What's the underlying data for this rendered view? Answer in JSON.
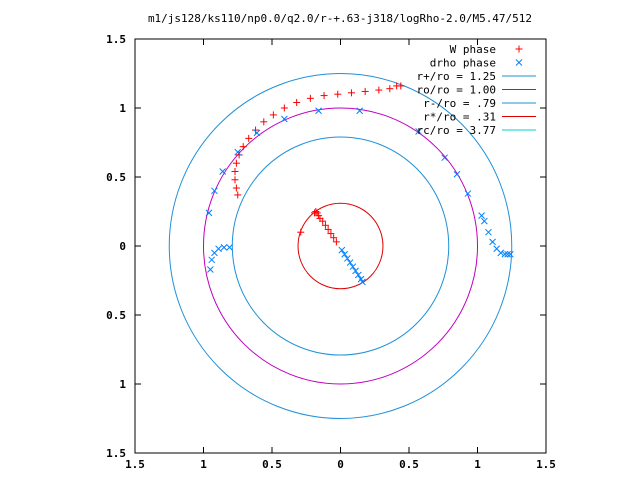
{
  "chart_data": {
    "type": "scatter",
    "title": "m1/js128/ks110/np0.0/q2.0/r-+.63-j318/logRho-2.0/M5.47/512",
    "xlim": [
      -1.5,
      1.5
    ],
    "ylim": [
      -1.5,
      1.5
    ],
    "x_ticks": [
      {
        "value": -1.5,
        "label": "1.5"
      },
      {
        "value": -1.0,
        "label": "1"
      },
      {
        "value": -0.5,
        "label": "0.5"
      },
      {
        "value": 0.0,
        "label": "0"
      },
      {
        "value": 0.5,
        "label": "0.5"
      },
      {
        "value": 1.0,
        "label": "1"
      },
      {
        "value": 1.5,
        "label": "1.5"
      }
    ],
    "y_ticks": [
      {
        "value": 1.5,
        "label": "1.5"
      },
      {
        "value": 1.0,
        "label": "1"
      },
      {
        "value": 0.5,
        "label": "0.5"
      },
      {
        "value": 0.0,
        "label": "0"
      },
      {
        "value": -0.5,
        "label": "0.5"
      },
      {
        "value": -1.0,
        "label": "1"
      },
      {
        "value": -1.5,
        "label": "1.5"
      }
    ],
    "grid": false,
    "legend_position": "top-right",
    "legend": [
      {
        "label": "W phase",
        "kind": "plus",
        "color": "#ff0000"
      },
      {
        "label": "drho phase",
        "kind": "cross",
        "color": "#0080ff"
      },
      {
        "label": "r+/ro = 1.25",
        "kind": "line",
        "color": "#2090d8"
      },
      {
        "label": "ro/ro = 1.00",
        "kind": "line",
        "color": "#c000c0"
      },
      {
        "label": "r-/ro = .79",
        "kind": "line",
        "color": "#2090d8"
      },
      {
        "label": "r*/ro = .31",
        "kind": "line",
        "color": "#e00000"
      },
      {
        "label": "rc/ro = 3.77",
        "kind": "line",
        "color": "#00d0d0"
      }
    ],
    "circles": [
      {
        "name": "r+/ro = 1.25",
        "radius": 1.25,
        "color": "#2090d8"
      },
      {
        "name": "ro/ro = 1.00",
        "radius": 1.0,
        "color": "#c000c0"
      },
      {
        "name": "r-/ro = .79",
        "radius": 0.79,
        "color": "#2090d8"
      },
      {
        "name": "r*/ro = .31",
        "radius": 0.31,
        "color": "#e00000"
      }
    ],
    "series": [
      {
        "name": "W phase",
        "marker": "plus",
        "color": "#ff0000",
        "points": [
          [
            -0.29,
            0.1
          ],
          [
            -0.19,
            0.24
          ],
          [
            -0.18,
            0.25
          ],
          [
            -0.17,
            0.24
          ],
          [
            -0.16,
            0.22
          ],
          [
            -0.15,
            0.2
          ],
          [
            -0.13,
            0.18
          ],
          [
            -0.11,
            0.15
          ],
          [
            -0.09,
            0.12
          ],
          [
            -0.07,
            0.09
          ],
          [
            -0.05,
            0.06
          ],
          [
            -0.03,
            0.03
          ],
          [
            -0.75,
            0.37
          ],
          [
            -0.76,
            0.42
          ],
          [
            -0.77,
            0.48
          ],
          [
            -0.77,
            0.54
          ],
          [
            -0.76,
            0.6
          ],
          [
            -0.74,
            0.66
          ],
          [
            -0.71,
            0.72
          ],
          [
            -0.67,
            0.78
          ],
          [
            -0.62,
            0.84
          ],
          [
            -0.56,
            0.9
          ],
          [
            -0.49,
            0.95
          ],
          [
            -0.41,
            1.0
          ],
          [
            -0.32,
            1.04
          ],
          [
            -0.22,
            1.07
          ],
          [
            -0.12,
            1.09
          ],
          [
            -0.02,
            1.1
          ],
          [
            0.08,
            1.11
          ],
          [
            0.18,
            1.12
          ],
          [
            0.28,
            1.13
          ],
          [
            0.36,
            1.14
          ],
          [
            0.41,
            1.16
          ],
          [
            0.44,
            1.16
          ]
        ]
      },
      {
        "name": "drho phase",
        "marker": "cross",
        "color": "#0080ff",
        "points": [
          [
            0.01,
            -0.03
          ],
          [
            0.03,
            -0.06
          ],
          [
            0.05,
            -0.09
          ],
          [
            0.07,
            -0.12
          ],
          [
            0.09,
            -0.15
          ],
          [
            0.11,
            -0.18
          ],
          [
            0.13,
            -0.21
          ],
          [
            0.15,
            -0.24
          ],
          [
            0.16,
            -0.26
          ],
          [
            -0.81,
            -0.01
          ],
          [
            -0.85,
            -0.01
          ],
          [
            -0.89,
            -0.02
          ],
          [
            -0.92,
            -0.05
          ],
          [
            -0.94,
            -0.1
          ],
          [
            -0.95,
            -0.17
          ],
          [
            -0.96,
            0.24
          ],
          [
            -0.92,
            0.4
          ],
          [
            -0.86,
            0.54
          ],
          [
            -0.75,
            0.68
          ],
          [
            -0.61,
            0.82
          ],
          [
            -0.41,
            0.92
          ],
          [
            -0.16,
            0.98
          ],
          [
            1.24,
            -0.06
          ],
          [
            1.22,
            -0.06
          ],
          [
            1.2,
            -0.06
          ],
          [
            1.17,
            -0.05
          ],
          [
            1.14,
            -0.02
          ],
          [
            1.11,
            0.03
          ],
          [
            1.08,
            0.1
          ],
          [
            1.05,
            0.18
          ],
          [
            1.03,
            0.22
          ],
          [
            0.93,
            0.38
          ],
          [
            0.85,
            0.52
          ],
          [
            0.76,
            0.64
          ],
          [
            0.57,
            0.83
          ],
          [
            0.14,
            0.98
          ]
        ]
      }
    ]
  }
}
